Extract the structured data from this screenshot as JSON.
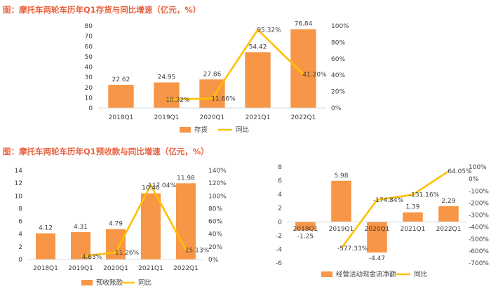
{
  "colors": {
    "title": "#E8603C",
    "bar": "#F79646",
    "line": "#FFC000",
    "axis": "#d9d9d9",
    "text": "#404040"
  },
  "figure1": {
    "title": "图：摩托车两轮车历年Q1存货与同比增速（亿元，%）"
  },
  "figure2": {
    "title": "图：摩托车两轮车历年Q1预收款与同比增速（亿元，%）"
  },
  "chart_data": [
    {
      "type": "bar",
      "title": "图：摩托车两轮车历年Q1存货与同比增速（亿元，%）",
      "categories": [
        "2018Q1",
        "2019Q1",
        "2020Q1",
        "2021Q1",
        "2022Q1"
      ],
      "series": [
        {
          "name": "存货",
          "type": "bar",
          "axis": "left",
          "values": [
            22.62,
            24.95,
            27.86,
            54.42,
            76.84
          ],
          "labels": [
            "22.62",
            "24.95",
            "27.86",
            "54.42",
            "76.84"
          ]
        },
        {
          "name": "同比",
          "type": "line",
          "axis": "right",
          "values": [
            null,
            10.32,
            11.66,
            95.32,
            41.2
          ],
          "labels": [
            null,
            "10.32%",
            "11.66%",
            "95.32%",
            "41.20%"
          ]
        }
      ],
      "ylim": [
        0,
        80
      ],
      "yticks": [
        "0",
        "10",
        "20",
        "30",
        "40",
        "50",
        "60",
        "70",
        "80"
      ],
      "y2lim": [
        0,
        100
      ],
      "y2ticks": [
        "0%",
        "20%",
        "40%",
        "60%",
        "80%",
        "100%"
      ],
      "legend": "bottom"
    },
    {
      "type": "bar",
      "title": "图：摩托车两轮车历年Q1预收款与同比增速（亿元，%）",
      "categories": [
        "2018Q1",
        "2019Q1",
        "2020Q1",
        "2021Q1",
        "2022Q1"
      ],
      "series": [
        {
          "name": "预收账款",
          "type": "bar",
          "axis": "left",
          "values": [
            4.12,
            4.31,
            4.79,
            10.4,
            11.98
          ],
          "labels": [
            "4.12",
            "4.31",
            "4.79",
            "10.40",
            "11.98"
          ]
        },
        {
          "name": "同比",
          "type": "line",
          "axis": "right",
          "values": [
            null,
            4.63,
            11.26,
            117.04,
            15.13
          ],
          "labels": [
            null,
            "4.63%",
            "11.26%",
            "117.04%",
            "15.13%"
          ]
        }
      ],
      "ylim": [
        0,
        14
      ],
      "yticks": [
        "0",
        "2",
        "4",
        "6",
        "8",
        "10",
        "12",
        "14"
      ],
      "y2lim": [
        0,
        140
      ],
      "y2ticks": [
        "0%",
        "20%",
        "40%",
        "60%",
        "80%",
        "100%",
        "120%",
        "140%"
      ],
      "legend": "bottom"
    },
    {
      "type": "bar",
      "title": "",
      "categories": [
        "2018Q1",
        "2019Q1",
        "2020Q1",
        "2021Q1",
        "2022Q1"
      ],
      "series": [
        {
          "name": "经营活动现金流净额",
          "type": "bar",
          "axis": "left",
          "values": [
            -1.25,
            5.98,
            -4.47,
            1.39,
            2.29
          ],
          "labels": [
            "-1.25",
            "5.98",
            "-4.47",
            "1.39",
            "2.29"
          ]
        },
        {
          "name": "同比",
          "type": "line",
          "axis": "right",
          "values": [
            null,
            -577.33,
            -174.84,
            -131.16,
            64.05
          ],
          "labels": [
            null,
            "-577.33%",
            "-174.84%",
            "-131.16%",
            "64.05%"
          ]
        }
      ],
      "ylim": [
        -6,
        8
      ],
      "yticks": [
        "-6",
        "-4",
        "-2",
        "0",
        "2",
        "4",
        "6",
        "8"
      ],
      "y2lim": [
        -700,
        100
      ],
      "y2ticks": [
        "-700%",
        "-600%",
        "-500%",
        "-400%",
        "-300%",
        "-200%",
        "-100%",
        "0%",
        "100%"
      ],
      "legend": "bottom"
    }
  ]
}
